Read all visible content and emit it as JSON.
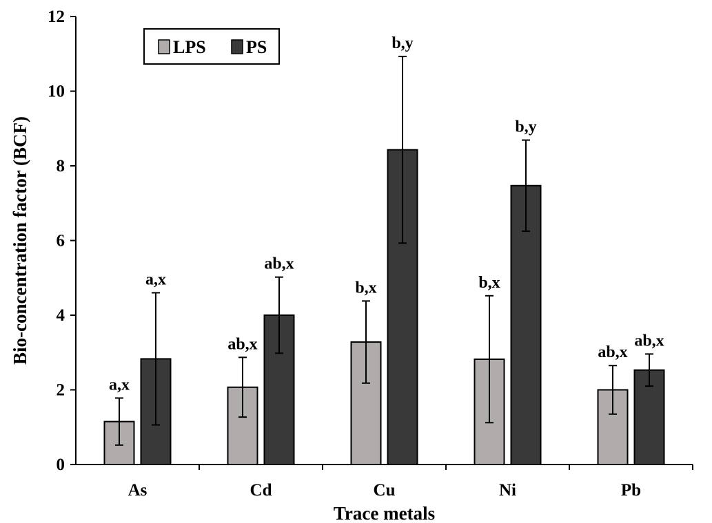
{
  "chart_data": {
    "type": "bar",
    "title": "",
    "xlabel": "Trace metals",
    "ylabel": "Bio-concentration factor (BCF)",
    "ylim": [
      0,
      12
    ],
    "yticks": [
      0,
      2,
      4,
      6,
      8,
      10,
      12
    ],
    "grid": false,
    "legend_position": "top-left",
    "categories": [
      "As",
      "Cd",
      "Cu",
      "Ni",
      "Pb"
    ],
    "series": [
      {
        "name": "LPS",
        "color": "#b0acab",
        "values": [
          1.15,
          2.07,
          3.28,
          2.82,
          2.0
        ],
        "errors": [
          0.63,
          0.8,
          1.1,
          1.7,
          0.65
        ],
        "labels": [
          "a,x",
          "ab,x",
          "b,x",
          "b,x",
          "ab,x"
        ]
      },
      {
        "name": "PS",
        "color": "#393939",
        "values": [
          2.83,
          4.0,
          8.43,
          7.47,
          2.53
        ],
        "errors": [
          1.77,
          1.02,
          2.5,
          1.22,
          0.43
        ],
        "labels": [
          "a,x",
          "ab,x",
          "b,y",
          "b,y",
          "ab,x"
        ]
      }
    ]
  }
}
